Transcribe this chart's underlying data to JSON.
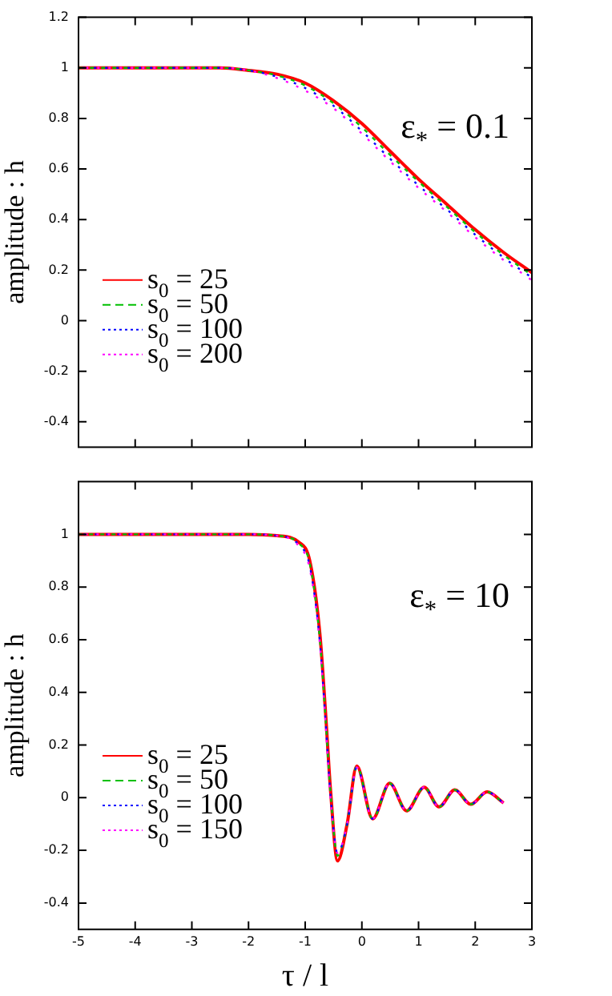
{
  "chart_data": [
    {
      "type": "line",
      "ylabel": "amplitude : h",
      "annotations": [
        "ε$_{*}$ = 0.1"
      ],
      "x": [
        -5,
        -3,
        -2.5,
        -2,
        -1.5,
        -1,
        -0.5,
        0,
        0.5,
        1,
        1.5,
        2,
        2.5,
        3
      ],
      "series": [
        {
          "name": "s$_{0}$ = 25",
          "color": "#ff0000",
          "line_style": "solid",
          "values": [
            1,
            1,
            1,
            0.99,
            0.975,
            0.94,
            0.87,
            0.78,
            0.67,
            0.56,
            0.46,
            0.36,
            0.27,
            0.19
          ]
        },
        {
          "name": "s$_{0}$ = 50",
          "color": "#00c000",
          "line_style": "dashed",
          "values": [
            1,
            1,
            1,
            0.99,
            0.97,
            0.93,
            0.86,
            0.765,
            0.655,
            0.55,
            0.45,
            0.35,
            0.26,
            0.18
          ]
        },
        {
          "name": "s$_{0}$ = 100",
          "color": "#0000ff",
          "line_style": "dotted",
          "values": [
            1,
            1,
            1,
            0.99,
            0.965,
            0.92,
            0.85,
            0.75,
            0.64,
            0.535,
            0.44,
            0.34,
            0.25,
            0.17
          ]
        },
        {
          "name": "s$_{0}$ = 200",
          "color": "#ff00ff",
          "line_style": "dotted",
          "values": [
            1,
            1,
            1,
            0.99,
            0.96,
            0.91,
            0.84,
            0.74,
            0.63,
            0.525,
            0.43,
            0.33,
            0.24,
            0.16
          ]
        }
      ],
      "xlim": [
        -5,
        3
      ],
      "xticks": [
        -5,
        -4,
        -3,
        -2,
        -1,
        0,
        1,
        2,
        3
      ],
      "ylim": [
        -0.5,
        1.2
      ],
      "yticks": [
        -0.4,
        -0.2,
        0,
        0.2,
        0.4,
        0.6,
        0.8,
        1,
        1.2
      ],
      "tick_labels": "y",
      "legend": "bottom left",
      "grid": false
    },
    {
      "type": "line",
      "xlabel": "τ / l",
      "ylabel": "amplitude : h",
      "annotations": [
        "ε$_{*}$ = 10"
      ],
      "x": [
        -5,
        -3,
        -2,
        -1.5,
        -1.11,
        -0.92,
        -0.74,
        -0.64,
        -0.55,
        -0.43,
        -0.26,
        -0.09,
        0.19,
        0.49,
        0.79,
        1.1,
        1.36,
        1.64,
        1.92,
        2.21,
        2.5
      ],
      "series": [
        {
          "name": "s$_{0}$ = 25",
          "color": "#ff0000",
          "line_style": "solid",
          "values": [
            1,
            1,
            1,
            0.995,
            0.97,
            0.9,
            0.62,
            0.32,
            0.02,
            -0.24,
            -0.1,
            0.12,
            -0.08,
            0.055,
            -0.05,
            0.04,
            -0.035,
            0.03,
            -0.025,
            0.022,
            -0.02
          ]
        },
        {
          "name": "s$_{0}$ = 50",
          "color": "#00c000",
          "line_style": "dashed",
          "values": [
            1,
            1,
            1,
            0.995,
            0.965,
            0.89,
            0.6,
            0.3,
            0.01,
            -0.22,
            -0.1,
            0.12,
            -0.08,
            0.055,
            -0.05,
            0.04,
            -0.035,
            0.03,
            -0.025,
            0.022,
            -0.02
          ]
        },
        {
          "name": "s$_{0}$ = 100",
          "color": "#0000ff",
          "line_style": "dotted",
          "values": [
            1,
            1,
            1,
            0.995,
            0.96,
            0.88,
            0.59,
            0.29,
            0.0,
            -0.21,
            -0.1,
            0.115,
            -0.08,
            0.055,
            -0.05,
            0.04,
            -0.035,
            0.03,
            -0.025,
            0.022,
            -0.02
          ]
        },
        {
          "name": "s$_{0}$ = 150",
          "color": "#ff00ff",
          "line_style": "dotted",
          "values": [
            1,
            1,
            1,
            0.995,
            0.955,
            0.87,
            0.58,
            0.28,
            -0.01,
            -0.21,
            -0.1,
            0.115,
            -0.08,
            0.055,
            -0.05,
            0.04,
            -0.035,
            0.03,
            -0.025,
            0.022,
            -0.02
          ]
        }
      ],
      "xlim": [
        -5,
        3
      ],
      "xticks": [
        -5,
        -4,
        -3,
        -2,
        -1,
        0,
        1,
        2,
        3
      ],
      "ylim": [
        -0.5,
        1.2
      ],
      "yticks": [
        -0.4,
        -0.2,
        0,
        0.2,
        0.4,
        0.6,
        0.8,
        1
      ],
      "legend": "bottom left",
      "grid": false
    }
  ]
}
